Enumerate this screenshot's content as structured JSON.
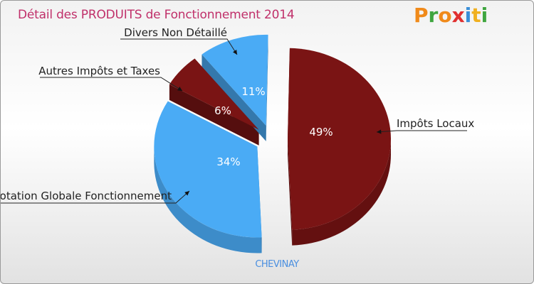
{
  "chart_data": {
    "type": "pie",
    "title": "Détail des PRODUITS de Fonctionnement 2014",
    "subtitle": "CHEVINAY",
    "slices": [
      {
        "label": "Impôts Locaux",
        "value": 49,
        "value_label": "49%",
        "color": "#7a1414"
      },
      {
        "label": "Dotation Globale Fonctionnement",
        "value": 34,
        "value_label": "34%",
        "color": "#4aabf5"
      },
      {
        "label": "Autres Impôts et Taxes",
        "value": 6,
        "value_label": "6%",
        "color": "#7a1414"
      },
      {
        "label": "Divers Non Détaillé",
        "value": 11,
        "value_label": "11%",
        "color": "#4aabf5"
      }
    ]
  },
  "logo": {
    "letters": [
      "P",
      "r",
      "o",
      "x",
      "i",
      "t",
      "i"
    ],
    "colors": [
      "#f08a1a",
      "#3fa53f",
      "#f08a1a",
      "#e03030",
      "#3a8fd8",
      "#f0b020",
      "#3fa53f"
    ]
  }
}
